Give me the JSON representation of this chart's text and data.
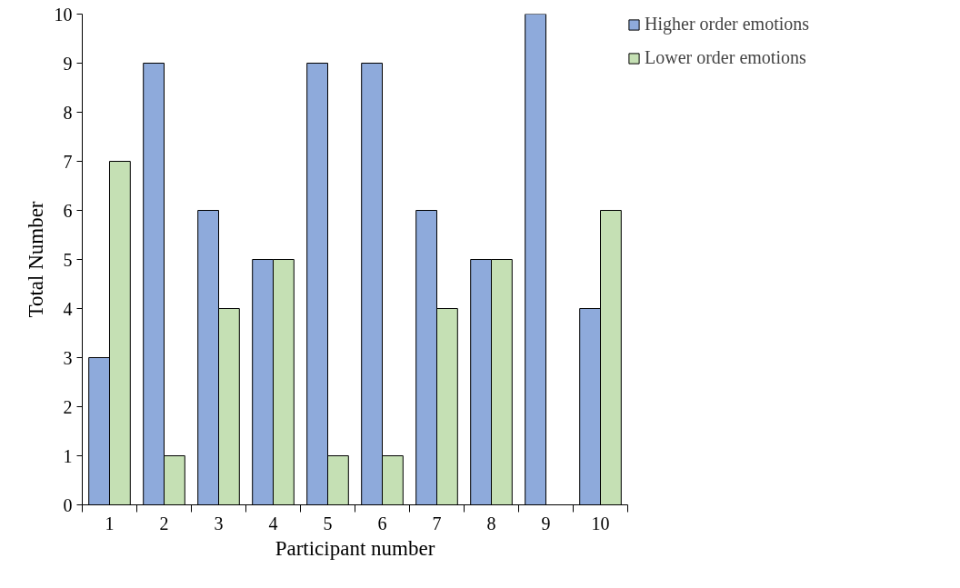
{
  "chart_data": {
    "type": "bar",
    "xlabel": "Participant number",
    "ylabel": "Total Number",
    "categories": [
      "1",
      "2",
      "3",
      "4",
      "5",
      "6",
      "7",
      "8",
      "9",
      "10"
    ],
    "series": [
      {
        "name": "Higher order emotions",
        "color": "#8eaadb",
        "values": [
          3,
          9,
          6,
          5,
          9,
          9,
          6,
          5,
          10,
          4
        ]
      },
      {
        "name": "Lower order emotions",
        "color": "#c5e0b4",
        "values": [
          7,
          1,
          4,
          5,
          1,
          1,
          4,
          5,
          0,
          6
        ]
      }
    ],
    "ylim": [
      0,
      10
    ],
    "yticks": [
      0,
      1,
      2,
      3,
      4,
      5,
      6,
      7,
      8,
      9,
      10
    ],
    "grid": false,
    "legend": "top right"
  }
}
